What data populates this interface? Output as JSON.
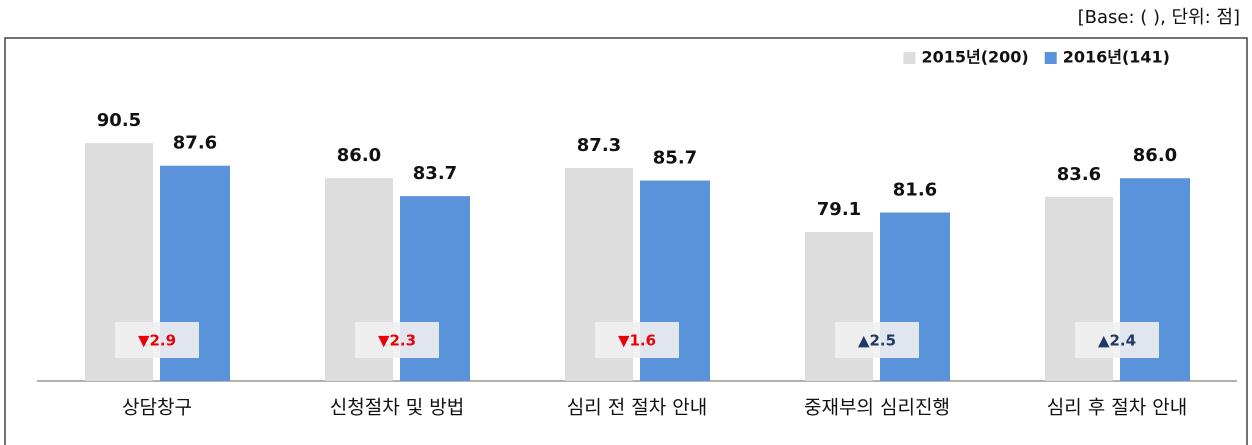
{
  "chart_data": {
    "type": "bar",
    "note": "[Base: (   ), 단위: 점]",
    "categories": [
      "상담창구",
      "신청절차 및 방법",
      "심리 전 절차 안내",
      "중재부의 심리진행",
      "심리 후 절차 안내"
    ],
    "series": [
      {
        "name": "2015년(200)",
        "color": "#dddddd",
        "values": [
          90.5,
          86.0,
          87.3,
          79.1,
          83.6
        ],
        "value_labels": [
          "90.5",
          "86.0",
          "87.3",
          "79.1",
          "83.6"
        ]
      },
      {
        "name": "2016년(141)",
        "color": "#5b93db",
        "values": [
          87.6,
          83.7,
          85.7,
          81.6,
          86.0
        ],
        "value_labels": [
          "87.6",
          "83.7",
          "85.7",
          "81.6",
          "86.0"
        ]
      }
    ],
    "annotations": [
      {
        "text": "▼2.9",
        "color": "#e8000b"
      },
      {
        "text": "▼2.3",
        "color": "#e8000b"
      },
      {
        "text": "▼1.6",
        "color": "#e8000b"
      },
      {
        "text": "▲2.5",
        "color": "#1f3864"
      },
      {
        "text": "▲2.4",
        "color": "#1f3864"
      }
    ],
    "ylim": [
      60,
      100
    ],
    "legend": "top-right"
  }
}
